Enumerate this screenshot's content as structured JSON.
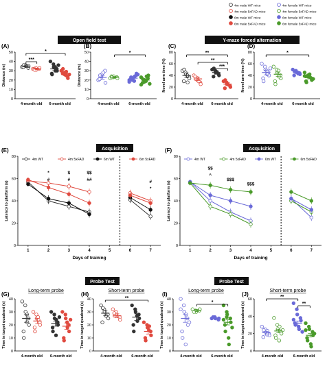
{
  "legend": {
    "entries": [
      {
        "label": "4m male WT mice",
        "marker": "open",
        "color": "#333333"
      },
      {
        "label": "4m female WT mice",
        "marker": "open",
        "color": "#6a6ad8"
      },
      {
        "label": "4m male 5xFAD mice",
        "marker": "open",
        "color": "#e04a3f"
      },
      {
        "label": "4m female 5xFAD mice",
        "marker": "open",
        "color": "#4a9a2a"
      },
      {
        "label": "6m male WT mice",
        "marker": "filled",
        "color": "#111111"
      },
      {
        "label": "6m female WT mice",
        "marker": "filled",
        "color": "#6a6ad8"
      },
      {
        "label": "6m male 5xFAD mice",
        "marker": "filled",
        "color": "#e04a3f"
      },
      {
        "label": "6m female 5xFAD mice",
        "marker": "filled",
        "color": "#4a9a2a"
      }
    ]
  },
  "section_titles": {
    "open_field": "Open field test",
    "ymaze": "Y-maze forced alternation",
    "acq_male": "Acquisition",
    "acq_female": "Acquisition",
    "probe_male": "Probe Test",
    "probe_female": "Probe Test"
  },
  "colors": {
    "male_wt": "#333333",
    "male_fad": "#e04a3f",
    "female_wt": "#6a6ad8",
    "female_fad": "#4a9a2a"
  },
  "chart_data": [
    {
      "id": "A",
      "type": "scatter",
      "panel_label": "(A)",
      "ylabel": "Distance (m)",
      "ylim": [
        0,
        50
      ],
      "yticks": [
        0,
        10,
        20,
        30,
        40,
        50
      ],
      "categories": [
        "4-month old",
        "6-month old"
      ],
      "groups": [
        {
          "cat": 0,
          "side": "WT",
          "mean": 35,
          "sem": 1.0,
          "points": [
            34,
            35,
            36,
            33,
            35,
            34,
            36,
            35
          ]
        },
        {
          "cat": 0,
          "side": "5xFAD",
          "mean": 32,
          "sem": 0.8,
          "points": [
            32,
            33,
            31,
            32,
            33,
            32,
            31
          ]
        },
        {
          "cat": 1,
          "side": "WT",
          "mean": 32,
          "sem": 2.0,
          "points": [
            40,
            37,
            34,
            32,
            30,
            27,
            26,
            34,
            30,
            36
          ]
        },
        {
          "cat": 1,
          "side": "5xFAD",
          "mean": 27,
          "sem": 1.5,
          "points": [
            30,
            28,
            26,
            24,
            22,
            27,
            32,
            25,
            29,
            26
          ]
        }
      ],
      "annotations": [
        "***",
        "*"
      ]
    },
    {
      "id": "B",
      "type": "scatter",
      "panel_label": "(B)",
      "ylabel": "Distance (m)",
      "ylim": [
        0,
        50
      ],
      "yticks": [
        0,
        10,
        20,
        30,
        40,
        50
      ],
      "categories": [
        "4-month old",
        "6-month old"
      ],
      "groups": [
        {
          "cat": 0,
          "side": "WT",
          "mean": 23,
          "sem": 2.0,
          "points": [
            20,
            24,
            26,
            30,
            17,
            21,
            25,
            28
          ]
        },
        {
          "cat": 0,
          "side": "5xFAD",
          "mean": 23,
          "sem": 0.8,
          "points": [
            22,
            23,
            24,
            23,
            22,
            24,
            23
          ]
        },
        {
          "cat": 1,
          "side": "WT",
          "mean": 22,
          "sem": 1.5,
          "points": [
            18,
            20,
            22,
            25,
            27,
            21,
            23,
            19,
            24,
            26,
            20,
            22
          ]
        },
        {
          "cat": 1,
          "side": "5xFAD",
          "mean": 20,
          "sem": 1.2,
          "points": [
            15,
            18,
            20,
            22,
            25,
            17,
            21,
            19,
            24,
            16,
            23,
            20
          ]
        }
      ],
      "annotations": [
        "*"
      ]
    },
    {
      "id": "C",
      "type": "scatter",
      "panel_label": "(C)",
      "ylabel": "Novel arm time (%)",
      "ylim": [
        0,
        80
      ],
      "yticks": [
        0,
        20,
        40,
        60,
        80
      ],
      "categories": [
        "4-month old",
        "6-month old"
      ],
      "groups": [
        {
          "cat": 0,
          "side": "WT",
          "mean": 40,
          "sem": 4,
          "points": [
            48,
            45,
            42,
            38,
            35,
            30,
            50,
            40,
            28
          ]
        },
        {
          "cat": 0,
          "side": "5xFAD",
          "mean": 34,
          "sem": 3,
          "points": [
            40,
            36,
            32,
            28,
            25,
            38,
            34,
            30
          ]
        },
        {
          "cat": 1,
          "side": "WT",
          "mean": 45,
          "sem": 3,
          "points": [
            50,
            48,
            45,
            42,
            40,
            38,
            52,
            46
          ]
        },
        {
          "cat": 1,
          "side": "5xFAD",
          "mean": 25,
          "sem": 2.5,
          "points": [
            30,
            28,
            25,
            22,
            20,
            18,
            32,
            24
          ]
        }
      ],
      "annotations": [
        "**",
        "**",
        "***"
      ]
    },
    {
      "id": "D",
      "type": "scatter",
      "panel_label": "(D)",
      "ylabel": "Novel arm time (%)",
      "ylim": [
        0,
        80
      ],
      "yticks": [
        0,
        20,
        40,
        60,
        80
      ],
      "categories": [
        "4-month old",
        "6-month old"
      ],
      "groups": [
        {
          "cat": 0,
          "side": "WT",
          "mean": 45,
          "sem": 4,
          "points": [
            60,
            55,
            50,
            45,
            40,
            35,
            30,
            48,
            42,
            52
          ]
        },
        {
          "cat": 0,
          "side": "5xFAD",
          "mean": 42,
          "sem": 4,
          "points": [
            55,
            50,
            45,
            40,
            35,
            30,
            25,
            48,
            38
          ]
        },
        {
          "cat": 1,
          "side": "WT",
          "mean": 45,
          "sem": 2,
          "points": [
            50,
            48,
            46,
            44,
            42,
            40,
            47,
            45,
            43
          ]
        },
        {
          "cat": 1,
          "side": "5xFAD",
          "mean": 36,
          "sem": 2,
          "points": [
            45,
            40,
            38,
            35,
            32,
            30,
            28,
            42,
            37,
            34,
            39
          ]
        }
      ],
      "annotations": [
        "*"
      ]
    },
    {
      "id": "E",
      "type": "line",
      "panel_label": "(E)",
      "title": "Acquisition",
      "xlabel": "Days of training",
      "ylabel": "Latency to platform (s)",
      "x": [
        1,
        2,
        3,
        4,
        5,
        6,
        7
      ],
      "xticks": [
        "1",
        "2",
        "3",
        "4",
        "5",
        "6",
        "7"
      ],
      "ylim": [
        0,
        80
      ],
      "yticks": [
        0,
        20,
        40,
        60,
        80
      ],
      "dashed_at": 5.5,
      "series": [
        {
          "name": "4m WT",
          "color": "#333333",
          "filled": false,
          "values": [
            57,
            40,
            35,
            30,
            null,
            41,
            26
          ],
          "err": [
            2,
            3,
            3,
            3,
            null,
            3,
            3
          ]
        },
        {
          "name": "4m 5xFAD",
          "color": "#e04a3f",
          "filled": false,
          "values": [
            58,
            56,
            53,
            48,
            null,
            47,
            40
          ],
          "err": [
            2,
            3,
            3,
            3,
            null,
            3,
            3
          ]
        },
        {
          "name": "6m WT",
          "color": "#111111",
          "filled": true,
          "values": [
            55,
            42,
            38,
            28,
            null,
            43,
            32
          ],
          "err": [
            2,
            3,
            3,
            3,
            null,
            3,
            3
          ]
        },
        {
          "name": "6m 5xFAD",
          "color": "#e04a3f",
          "filled": true,
          "values": [
            59,
            52,
            46,
            38,
            null,
            45,
            38
          ],
          "err": [
            2,
            3,
            3,
            3,
            null,
            3,
            3
          ]
        }
      ],
      "annotations": [
        "*",
        "#",
        "$",
        "#",
        "$$",
        "##",
        "#",
        "*"
      ]
    },
    {
      "id": "F",
      "type": "line",
      "panel_label": "(F)",
      "title": "Acquisition",
      "xlabel": "Days of training",
      "ylabel": "Latency to platform (s)",
      "x": [
        1,
        2,
        3,
        4,
        5,
        6,
        7
      ],
      "xticks": [
        "1",
        "2",
        "3",
        "4",
        "5",
        "6",
        "7"
      ],
      "ylim": [
        0,
        80
      ],
      "yticks": [
        0,
        20,
        40,
        60,
        80
      ],
      "dashed_at": 5.5,
      "series": [
        {
          "name": "4m WT",
          "color": "#6a6ad8",
          "filled": false,
          "values": [
            57,
            40,
            30,
            22,
            null,
            42,
            25
          ],
          "err": [
            2,
            3,
            3,
            3,
            null,
            3,
            3
          ]
        },
        {
          "name": "4m 5xFAD",
          "color": "#4a9a2a",
          "filled": false,
          "values": [
            56,
            35,
            28,
            19,
            null,
            40,
            30
          ],
          "err": [
            2,
            3,
            3,
            3,
            null,
            3,
            3
          ]
        },
        {
          "name": "6m WT",
          "color": "#6a6ad8",
          "filled": true,
          "values": [
            57,
            45,
            40,
            35,
            null,
            42,
            32
          ],
          "err": [
            2,
            3,
            3,
            3,
            null,
            3,
            3
          ]
        },
        {
          "name": "6m 5xFAD",
          "color": "#4a9a2a",
          "filled": true,
          "values": [
            56,
            54,
            50,
            48,
            null,
            48,
            40
          ],
          "err": [
            2,
            3,
            3,
            3,
            null,
            3,
            3
          ]
        }
      ],
      "annotations": [
        "$$",
        "^",
        "$$$",
        "$$$"
      ]
    },
    {
      "id": "G",
      "type": "scatter",
      "panel_label": "(G)",
      "title": "Long-term probe",
      "ylabel": "Time in target quadrant (s)",
      "ylim": [
        0,
        40
      ],
      "yticks": [
        0,
        10,
        20,
        30,
        40
      ],
      "categories": [
        "4-month old",
        "6-month old"
      ],
      "groups": [
        {
          "cat": 0,
          "side": "WT",
          "mean": 25,
          "sem": 3,
          "points": [
            38,
            35,
            30,
            25,
            20,
            15,
            10,
            28,
            22
          ]
        },
        {
          "cat": 0,
          "side": "5xFAD",
          "mean": 23,
          "sem": 2,
          "points": [
            30,
            28,
            25,
            22,
            20,
            18,
            15,
            26,
            24
          ]
        },
        {
          "cat": 1,
          "side": "WT",
          "mean": 21,
          "sem": 2,
          "points": [
            30,
            28,
            25,
            22,
            20,
            18,
            15,
            12,
            24,
            26
          ]
        },
        {
          "cat": 1,
          "side": "5xFAD",
          "mean": 19,
          "sem": 2.5,
          "points": [
            30,
            28,
            25,
            20,
            15,
            10,
            8,
            22,
            18,
            24
          ]
        }
      ],
      "annotations": []
    },
    {
      "id": "H",
      "type": "scatter",
      "panel_label": "(H)",
      "title": "Short-term probe",
      "ylabel": "Time in target quadrant (s)",
      "ylim": [
        0,
        40
      ],
      "yticks": [
        0,
        10,
        20,
        30,
        40
      ],
      "categories": [
        "4-month old",
        "6-month old"
      ],
      "groups": [
        {
          "cat": 0,
          "side": "WT",
          "mean": 29,
          "sem": 2,
          "points": [
            35,
            32,
            30,
            28,
            25,
            22,
            33,
            27
          ]
        },
        {
          "cat": 0,
          "side": "5xFAD",
          "mean": 27,
          "sem": 1.5,
          "points": [
            32,
            30,
            28,
            26,
            24,
            29,
            27
          ]
        },
        {
          "cat": 1,
          "side": "WT",
          "mean": 26,
          "sem": 2.5,
          "points": [
            35,
            32,
            30,
            28,
            25,
            20,
            15,
            27,
            23
          ]
        },
        {
          "cat": 1,
          "side": "5xFAD",
          "mean": 15,
          "sem": 2,
          "points": [
            22,
            20,
            18,
            15,
            12,
            10,
            8,
            16,
            19
          ]
        }
      ],
      "annotations": [
        "**"
      ]
    },
    {
      "id": "I",
      "type": "scatter",
      "panel_label": "(I)",
      "title": "Long-term probe",
      "ylabel": "Time in target quadrant (s)",
      "ylim": [
        0,
        40
      ],
      "yticks": [
        0,
        10,
        20,
        30,
        40
      ],
      "categories": [
        "4-month old",
        "6-month old"
      ],
      "groups": [
        {
          "cat": 0,
          "side": "WT",
          "mean": 25,
          "sem": 3,
          "points": [
            40,
            35,
            30,
            25,
            20,
            15,
            10,
            5,
            28,
            22,
            32
          ]
        },
        {
          "cat": 0,
          "side": "5xFAD",
          "mean": 31,
          "sem": 0.8,
          "points": [
            32,
            31,
            30,
            31,
            32,
            30
          ]
        },
        {
          "cat": 1,
          "side": "WT",
          "mean": 25,
          "sem": 0.5,
          "points": [
            25,
            26,
            25,
            24,
            25,
            26
          ]
        },
        {
          "cat": 1,
          "side": "5xFAD",
          "mean": 22,
          "sem": 2,
          "points": [
            35,
            30,
            28,
            25,
            22,
            20,
            15,
            10,
            5,
            18,
            24,
            26
          ]
        }
      ],
      "annotations": [
        "*"
      ]
    },
    {
      "id": "J",
      "type": "scatter",
      "panel_label": "(J)",
      "title": "Short-term probe",
      "ylabel": "Time in target quadrant (s)",
      "ylim": [
        0,
        60
      ],
      "yticks": [
        0,
        20,
        40,
        60
      ],
      "categories": [
        "4-month old",
        "6-month old"
      ],
      "groups": [
        {
          "cat": 0,
          "side": "WT",
          "mean": 21,
          "sem": 1.5,
          "points": [
            28,
            25,
            22,
            20,
            18,
            16,
            24,
            19,
            23
          ]
        },
        {
          "cat": 0,
          "side": "5xFAD",
          "mean": 23,
          "sem": 2,
          "points": [
            38,
            30,
            25,
            22,
            20,
            18,
            15,
            12,
            28,
            24
          ]
        },
        {
          "cat": 1,
          "side": "WT",
          "mean": 32,
          "sem": 2.5,
          "points": [
            55,
            48,
            42,
            38,
            35,
            32,
            30,
            28,
            25,
            22,
            36
          ]
        },
        {
          "cat": 1,
          "side": "5xFAD",
          "mean": 18,
          "sem": 2,
          "points": [
            32,
            28,
            25,
            22,
            18,
            15,
            12,
            8,
            5,
            20,
            24
          ]
        }
      ],
      "annotations": [
        "**",
        "**"
      ]
    }
  ]
}
